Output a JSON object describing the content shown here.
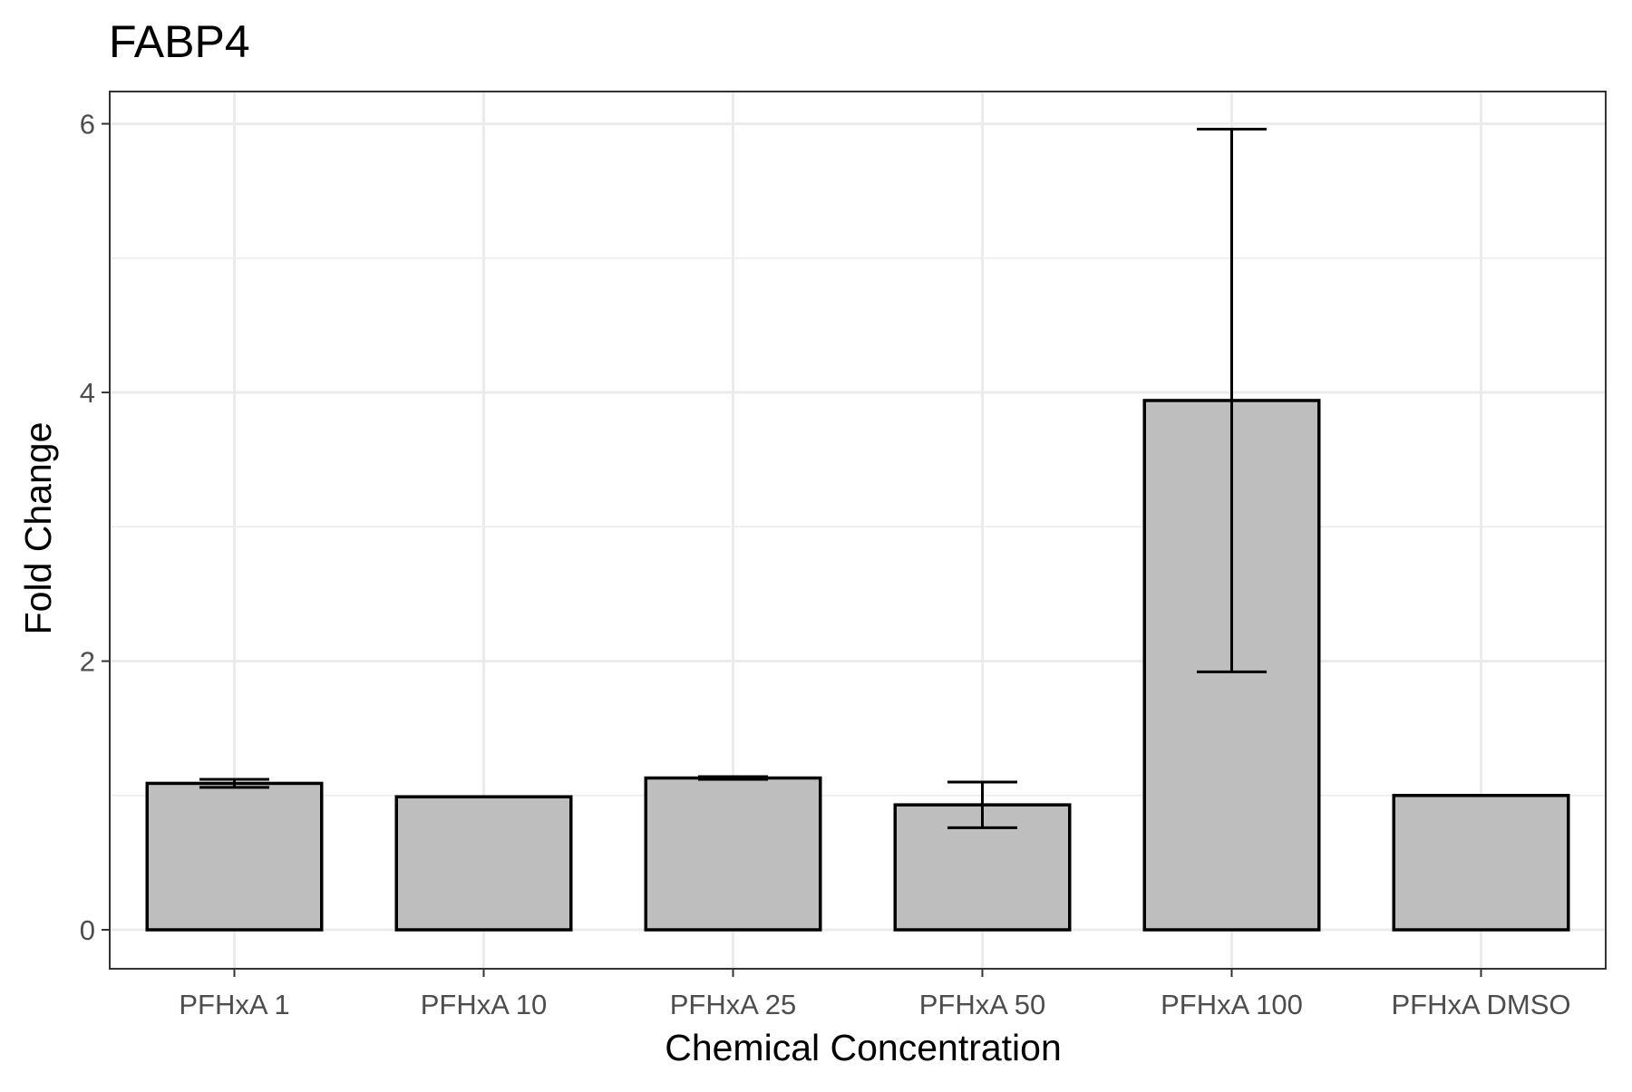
{
  "chart_data": {
    "type": "bar",
    "title": "FABP4",
    "xlabel": "Chemical Concentration",
    "ylabel": "Fold Change",
    "categories": [
      "PFHxA 1",
      "PFHxA 10",
      "PFHxA 25",
      "PFHxA 50",
      "PFHxA 100",
      "PFHxA DMSO"
    ],
    "values": [
      1.09,
      0.99,
      1.13,
      0.93,
      3.94,
      1.0
    ],
    "error_low": [
      1.06,
      0.99,
      1.12,
      0.76,
      1.92,
      1.0
    ],
    "error_high": [
      1.12,
      0.99,
      1.14,
      1.1,
      5.96,
      1.0
    ],
    "y_ticks": [
      0,
      2,
      4,
      6
    ],
    "ylim": [
      -0.29,
      6.24
    ],
    "grid": true,
    "bar_fill": "#bebebe",
    "bar_stroke": "#000000",
    "grid_color": "#ebebeb"
  }
}
